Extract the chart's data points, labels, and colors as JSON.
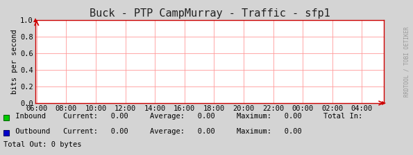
{
  "title": "Buck - PTP CampMurray - Traffic - sfp1",
  "ylabel": "bits per second",
  "x_tick_labels": [
    "06:00",
    "08:00",
    "10:00",
    "12:00",
    "14:00",
    "16:00",
    "18:00",
    "20:00",
    "22:00",
    "00:00",
    "02:00",
    "04:00"
  ],
  "x_tick_positions": [
    0,
    2,
    4,
    6,
    8,
    10,
    12,
    14,
    16,
    18,
    20,
    22
  ],
  "x_min": -0.1,
  "x_max": 23.5,
  "y_min": 0.0,
  "y_max": 1.0,
  "y_ticks": [
    0.0,
    0.2,
    0.4,
    0.6,
    0.8,
    1.0
  ],
  "bg_color": "#d4d4d4",
  "plot_bg_color": "#ffffff",
  "grid_color": "#ff9999",
  "axis_color": "#cc0000",
  "title_color": "#222222",
  "inbound_color": "#00cc00",
  "inbound_edge": "#006600",
  "outbound_color": "#0000cc",
  "outbound_edge": "#000066",
  "legend_text_color": "#000000",
  "watermark": "RRDTOOL / TOBI OETIKER",
  "watermark_color": "#999999",
  "legend_inbound_label": "Inbound",
  "legend_inbound_current": "0.00",
  "legend_inbound_average": "0.00",
  "legend_inbound_maximum": "0.00",
  "legend_inbound_total": "Total In:",
  "legend_outbound_label": "Outbound",
  "legend_outbound_current": "0.00",
  "legend_outbound_average": "0.00",
  "legend_outbound_maximum": "0.00",
  "legend_total_out": "Total Out: 0 bytes",
  "font_family": "monospace",
  "title_fontsize": 11,
  "label_fontsize": 7.5,
  "tick_fontsize": 7.5,
  "legend_fontsize": 7.5
}
